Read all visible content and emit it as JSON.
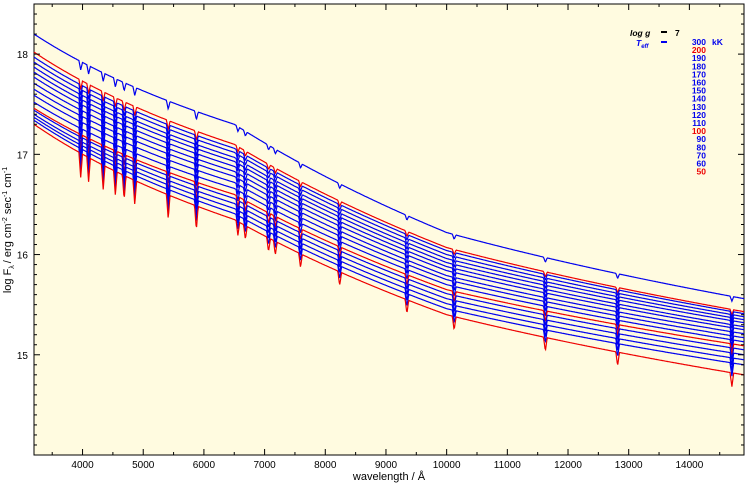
{
  "chart_data": {
    "type": "line",
    "title": "",
    "xlabel": "wavelength / Å",
    "ylabel": "log F",
    "ylabel_sub": "λ",
    "ylabel_units": "/ erg cm",
    "ylabel_exp1": "-2",
    "ylabel_sec": " sec",
    "ylabel_exp2": "-1",
    "ylabel_cm": " cm",
    "ylabel_exp3": "-1",
    "xlim": [
      3200,
      14900
    ],
    "ylim": [
      14.0,
      18.5
    ],
    "xticks": [
      4000,
      5000,
      6000,
      7000,
      8000,
      9000,
      10000,
      11000,
      12000,
      13000,
      14000
    ],
    "xtick_labels": [
      "4000",
      "5000",
      "6000",
      "7000",
      "8000",
      "9000",
      "10000",
      "11000",
      "12000",
      "13000",
      "14000"
    ],
    "yticks": [
      15,
      16,
      17,
      18
    ],
    "ytick_labels": [
      "15",
      "16",
      "17",
      "18"
    ],
    "background": "#fffbe0",
    "legend": {
      "placement": "top-right",
      "logg_label": "log g",
      "logg_value": "7",
      "teff_label": "T",
      "teff_sub": "eff",
      "unit": "kK"
    },
    "series": [
      {
        "name": "300",
        "color": "#0000ee",
        "y": [
          18.2,
          17.3,
          16.22,
          15.56
        ]
      },
      {
        "name": "200",
        "color": "#ee0000",
        "y": [
          18.02,
          17.1,
          16.07,
          15.43
        ]
      },
      {
        "name": "190",
        "color": "#0000ee",
        "y": [
          17.97,
          17.06,
          16.04,
          15.41
        ]
      },
      {
        "name": "180",
        "color": "#0000ee",
        "y": [
          17.92,
          17.02,
          16.0,
          15.38
        ]
      },
      {
        "name": "170",
        "color": "#0000ee",
        "y": [
          17.87,
          16.97,
          15.96,
          15.35
        ]
      },
      {
        "name": "160",
        "color": "#0000ee",
        "y": [
          17.82,
          16.93,
          15.92,
          15.32
        ]
      },
      {
        "name": "150",
        "color": "#0000ee",
        "y": [
          17.77,
          16.88,
          15.88,
          15.28
        ]
      },
      {
        "name": "140",
        "color": "#0000ee",
        "y": [
          17.71,
          16.83,
          15.84,
          15.25
        ]
      },
      {
        "name": "130",
        "color": "#0000ee",
        "y": [
          17.65,
          16.78,
          15.79,
          15.21
        ]
      },
      {
        "name": "120",
        "color": "#0000ee",
        "y": [
          17.59,
          16.72,
          15.75,
          15.17
        ]
      },
      {
        "name": "110",
        "color": "#0000ee",
        "y": [
          17.52,
          16.66,
          15.7,
          15.13
        ]
      },
      {
        "name": "100",
        "color": "#ee0000",
        "y": [
          17.46,
          16.6,
          15.65,
          15.09
        ]
      },
      {
        "name": "90",
        "color": "#0000ee",
        "y": [
          17.44,
          16.56,
          15.61,
          15.05
        ]
      },
      {
        "name": "80",
        "color": "#0000ee",
        "y": [
          17.4,
          16.51,
          15.56,
          15.0
        ]
      },
      {
        "name": "70",
        "color": "#0000ee",
        "y": [
          17.37,
          16.46,
          15.51,
          14.95
        ]
      },
      {
        "name": "60",
        "color": "#0000ee",
        "y": [
          17.34,
          16.41,
          15.46,
          14.9
        ]
      },
      {
        "name": "50",
        "color": "#ee0000",
        "y": [
          17.3,
          16.35,
          15.4,
          14.8
        ]
      }
    ],
    "sample_x": [
      3200,
      6500,
      10000,
      14900
    ],
    "absorption_lines": [
      3970,
      4100,
      4340,
      4541,
      4686,
      4861,
      5412,
      5876,
      6560,
      6683,
      7065,
      7177,
      7592,
      8237,
      9345,
      10124,
      11626,
      12817,
      14700
    ]
  }
}
